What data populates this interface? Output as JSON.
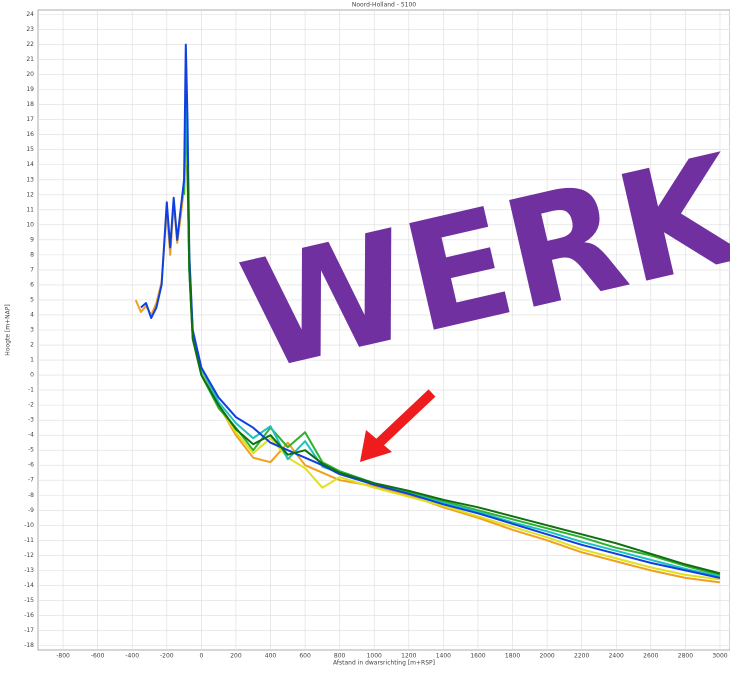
{
  "chart_data": {
    "type": "line",
    "title": "Noord-Holland - 5100",
    "x_label": "Afstand in dwarsrichting [m+RSP]",
    "y_label": "Hoogte [m+NAP]",
    "annotation": "WERK",
    "grid": true,
    "xlim": [
      -945,
      3058
    ],
    "ylim": [
      -18.3,
      24.3
    ],
    "xticks": [
      -800,
      -600,
      -400,
      -200,
      0,
      200,
      400,
      600,
      800,
      1000,
      1200,
      1400,
      1600,
      1800,
      2000,
      2200,
      2400,
      2600,
      2800,
      3000
    ],
    "yticks": [
      -18,
      -17,
      -16,
      -15,
      -14,
      -13,
      -12,
      -11,
      -10,
      -9,
      -8,
      -7,
      -6,
      -5,
      -4,
      -3,
      -2,
      -1,
      0,
      1,
      2,
      3,
      4,
      5,
      6,
      7,
      8,
      9,
      10,
      11,
      12,
      13,
      14,
      15,
      16,
      17,
      18,
      19,
      20,
      21,
      22,
      23,
      24
    ],
    "x": [
      -380,
      -350,
      -320,
      -290,
      -260,
      -230,
      -200,
      -180,
      -160,
      -140,
      -120,
      -100,
      -90,
      -80,
      -70,
      -50,
      0,
      100,
      200,
      300,
      400,
      500,
      600,
      700,
      800,
      1000,
      1200,
      1400,
      1600,
      1800,
      2000,
      2200,
      2400,
      2600,
      2800,
      3000
    ],
    "series": [
      {
        "color": "#f0a020",
        "values": [
          5,
          4.2,
          4.6,
          4.0,
          4.8,
          6.2,
          11,
          8,
          11.5,
          8.8,
          10.5,
          12.5,
          18,
          15,
          7.5,
          2.8,
          0.2,
          -2,
          -4,
          -5.5,
          -5.8,
          -4.5,
          -6.0,
          -6.5,
          -7,
          -7.4,
          -8.0,
          -8.8,
          -9.5,
          -10.3,
          -11,
          -11.8,
          -12.4,
          -13.0,
          -13.5,
          -13.8
        ]
      },
      {
        "color": "#e0e020",
        "values": [
          null,
          null,
          null,
          null,
          null,
          null,
          null,
          null,
          null,
          null,
          null,
          12,
          16,
          13,
          7,
          2.6,
          0.1,
          -2.1,
          -3.8,
          -5.2,
          -4.2,
          -5.5,
          -6.2,
          -7.5,
          -6.8,
          -7.5,
          -8.1,
          -8.7,
          -9.4,
          -10.1,
          -10.8,
          -11.6,
          -12.2,
          -12.8,
          -13.3,
          -13.6
        ]
      },
      {
        "color": "#30b030",
        "values": [
          null,
          null,
          null,
          null,
          null,
          null,
          null,
          null,
          null,
          null,
          null,
          12,
          17,
          14,
          7,
          2.5,
          0,
          -2.2,
          -3.5,
          -5,
          -3.5,
          -4.8,
          -3.8,
          -5.8,
          -6.4,
          -7.2,
          -7.8,
          -8.4,
          -9.0,
          -9.6,
          -10.2,
          -10.8,
          -11.5,
          -12.0,
          -12.7,
          -13.3
        ]
      },
      {
        "color": "#20c0c0",
        "values": [
          null,
          null,
          null,
          null,
          null,
          null,
          null,
          null,
          null,
          null,
          null,
          12.5,
          19,
          15,
          7.8,
          2.9,
          0.4,
          -1.8,
          -3.2,
          -4.2,
          -3.4,
          -5.6,
          -4.4,
          -6.1,
          -6.5,
          -7.2,
          -7.9,
          -8.5,
          -9.1,
          -9.8,
          -10.4,
          -11.1,
          -11.7,
          -12.3,
          -12.9,
          -13.4
        ]
      },
      {
        "color": "#1040e0",
        "values": [
          null,
          4.5,
          4.8,
          3.8,
          4.5,
          6,
          11.5,
          8.5,
          11.8,
          9,
          11,
          13,
          22,
          17,
          8,
          3,
          0.5,
          -1.5,
          -2.8,
          -3.5,
          -4.5,
          -5.0,
          -5.5,
          -6.0,
          -6.6,
          -7.3,
          -7.9,
          -8.6,
          -9.2,
          -9.9,
          -10.6,
          -11.3,
          -11.9,
          -12.5,
          -13.0,
          -13.5
        ]
      },
      {
        "color": "#107010",
        "values": [
          null,
          null,
          null,
          null,
          null,
          null,
          null,
          null,
          null,
          null,
          null,
          null,
          null,
          14,
          7,
          2.4,
          0,
          -2,
          -3.6,
          -4.6,
          -4.0,
          -5.3,
          -5.0,
          -5.9,
          -6.5,
          -7.2,
          -7.7,
          -8.3,
          -8.8,
          -9.4,
          -10.0,
          -10.6,
          -11.2,
          -11.9,
          -12.6,
          -13.2
        ]
      }
    ]
  }
}
